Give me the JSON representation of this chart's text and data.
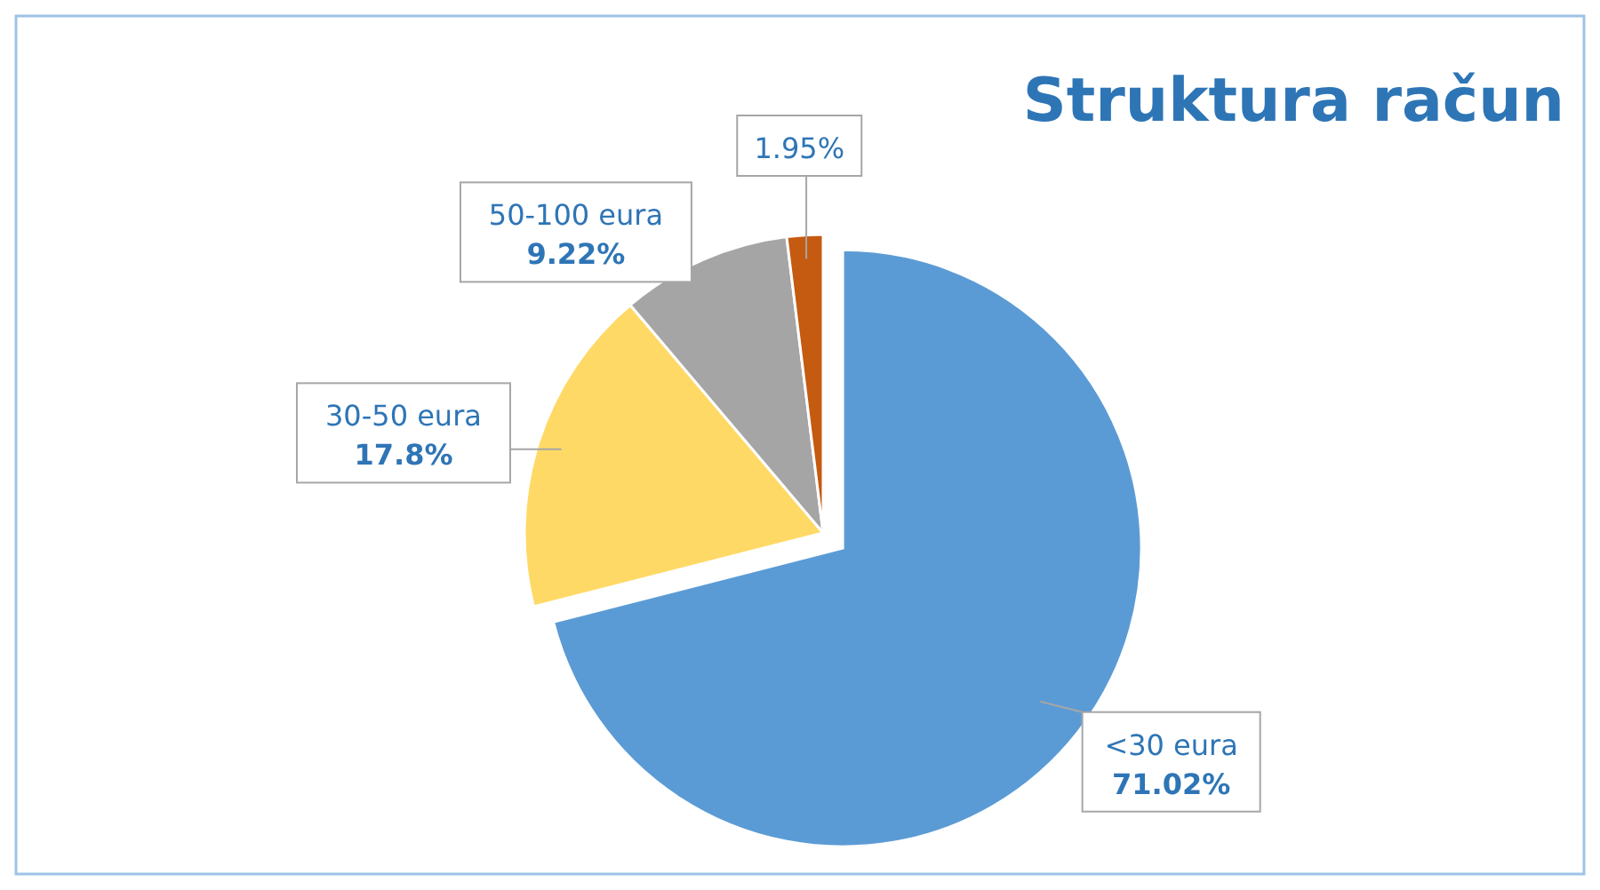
{
  "chart_data": {
    "type": "pie",
    "title": "Struktura račun",
    "categories": [
      "<30 eura",
      "30-50 eura",
      "50-100 eura",
      null
    ],
    "values": [
      71.02,
      17.8,
      9.22,
      1.95
    ],
    "value_labels": [
      "71.02%",
      "17.8%",
      "9.22%",
      "1.95%"
    ],
    "colors": [
      "#5b9bd5",
      "#ffd966",
      "#a5a5a5",
      "#c55a11"
    ]
  }
}
